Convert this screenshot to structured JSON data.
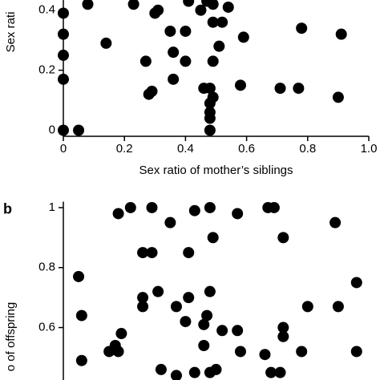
{
  "chart_data": [
    {
      "type": "scatter",
      "ylabel": "Sex rati",
      "xlabel": "Sex ratio of mother’s siblings",
      "color": "#000000",
      "xlim": [
        0,
        1
      ],
      "ylim": [
        -0.02,
        0.434
      ],
      "xticks": [
        0,
        0.2,
        0.4,
        0.6,
        0.8,
        {
          "value": 1,
          "label": "1.0"
        }
      ],
      "yticks": [
        0,
        0.2,
        0.4
      ],
      "x": [
        0,
        0,
        0,
        0,
        0,
        0.05,
        0.08,
        0.14,
        0.23,
        0.3,
        0.31,
        0.35,
        0.4,
        0.36,
        0.4,
        0.27,
        0.28,
        0.29,
        0.36,
        0.41,
        0.45,
        0.47,
        0.49,
        0.52,
        0.54,
        0.49,
        0.46,
        0.48,
        0.49,
        0.48,
        0.48,
        0.48,
        0.48,
        0.49,
        0.51,
        0.59,
        0.58,
        0.71,
        0.77,
        0.78,
        0.91,
        0.9
      ],
      "values": [
        0.39,
        0.32,
        0.25,
        0.17,
        0,
        0,
        0.42,
        0.29,
        0.42,
        0.39,
        0.4,
        0.33,
        0.33,
        0.26,
        0.23,
        0.23,
        0.12,
        0.13,
        0.17,
        0.43,
        0.4,
        0.43,
        0.42,
        0.36,
        0.41,
        0.36,
        0.14,
        0.14,
        0.11,
        0.09,
        0.06,
        0.04,
        0,
        0.23,
        0.28,
        0.31,
        0.15,
        0.14,
        0.14,
        0.34,
        0.32,
        0.11
      ]
    },
    {
      "type": "scatter",
      "panel_label": "b",
      "ylabel": "o of offspring",
      "color": "#000000",
      "xlim": [
        0,
        1
      ],
      "ylim": [
        0.425,
        1.02
      ],
      "yticks": [
        1,
        0.8,
        0.6
      ],
      "x": [
        0.05,
        0.06,
        0.06,
        0.18,
        0.22,
        0.29,
        0.35,
        0.26,
        0.29,
        0.41,
        0.43,
        0.48,
        0.49,
        0.57,
        0.67,
        0.69,
        0.72,
        0.89,
        0.96,
        0.31,
        0.26,
        0.26,
        0.41,
        0.48,
        0.37,
        0.47,
        0.4,
        0.8,
        0.9,
        0.19,
        0.17,
        0.18,
        0.15,
        0.46,
        0.46,
        0.52,
        0.57,
        0.58,
        0.72,
        0.72,
        0.66,
        0.78,
        0.96,
        0.32,
        0.37,
        0.43,
        0.48,
        0.5,
        0.68,
        0.71
      ],
      "values": [
        0.77,
        0.64,
        0.49,
        0.98,
        1,
        1,
        0.95,
        0.85,
        0.85,
        0.85,
        0.99,
        1,
        0.9,
        0.98,
        1,
        1,
        0.9,
        0.95,
        0.75,
        0.72,
        0.7,
        0.67,
        0.7,
        0.72,
        0.67,
        0.64,
        0.62,
        0.67,
        0.67,
        0.58,
        0.54,
        0.52,
        0.52,
        0.61,
        0.54,
        0.59,
        0.59,
        0.52,
        0.6,
        0.57,
        0.51,
        0.52,
        0.52,
        0.46,
        0.44,
        0.45,
        0.45,
        0.46,
        0.45,
        0.45
      ]
    }
  ]
}
